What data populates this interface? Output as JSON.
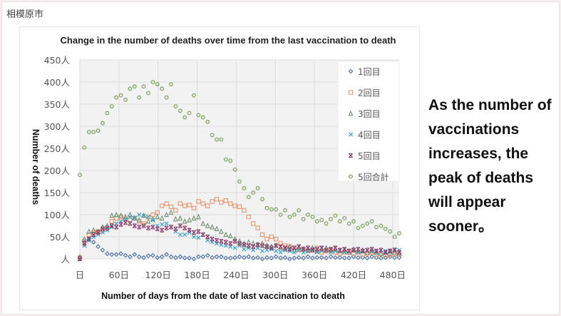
{
  "header": {
    "city": "相模原市"
  },
  "note": {
    "text": "As the number of vaccinations increases, the peak of deaths will appear sooner。"
  },
  "chart_data": {
    "type": "scatter",
    "title": "Change in the number of deaths over time from the last vaccination to death",
    "xlabel": "Number of days from the date of last vaccination to death",
    "ylabel": "Number of deaths",
    "xlim": [
      0,
      490
    ],
    "ylim": [
      0,
      450
    ],
    "x_ticks": [
      0,
      60,
      120,
      180,
      240,
      300,
      360,
      420,
      480
    ],
    "x_tick_labels": [
      "日",
      "60日",
      "120日",
      "180日",
      "240日",
      "300日",
      "360日",
      "420日",
      "480日"
    ],
    "y_ticks": [
      0,
      50,
      100,
      150,
      200,
      250,
      300,
      350,
      400,
      450
    ],
    "y_tick_labels": [
      "人",
      "50人",
      "100人",
      "150人",
      "200人",
      "250人",
      "300人",
      "350人",
      "400人",
      "450人"
    ],
    "grid": true,
    "legend_position": "top-right",
    "x_step_days": 7,
    "series": [
      {
        "name": "1回目",
        "marker": "diamond",
        "color": "#4a6fa5",
        "values": [
          2,
          38,
          45,
          38,
          28,
          20,
          12,
          10,
          10,
          12,
          8,
          5,
          10,
          5,
          3,
          7,
          8,
          3,
          5,
          10,
          5,
          3,
          5,
          2,
          2,
          0,
          5,
          5,
          8,
          3,
          5,
          5,
          2,
          2,
          3,
          5,
          3,
          5,
          2,
          3,
          0,
          3,
          2,
          5,
          2,
          3,
          0,
          2,
          3,
          2,
          5,
          2,
          3,
          3,
          2,
          5,
          3,
          3,
          2,
          2,
          5,
          3,
          3,
          2,
          5,
          3,
          2,
          3,
          5,
          3,
          3
        ]
      },
      {
        "name": "2回目",
        "marker": "square",
        "color": "#e8956b",
        "values": [
          3,
          40,
          55,
          60,
          62,
          65,
          70,
          85,
          92,
          95,
          90,
          88,
          92,
          85,
          80,
          95,
          100,
          105,
          120,
          125,
          118,
          110,
          125,
          120,
          122,
          115,
          130,
          125,
          120,
          130,
          135,
          128,
          132,
          125,
          120,
          118,
          110,
          95,
          80,
          70,
          55,
          45,
          50,
          45,
          35,
          30,
          28,
          25,
          20,
          22,
          18,
          20,
          25,
          15,
          18,
          20,
          15,
          12,
          15,
          18,
          12,
          15,
          10,
          12,
          15,
          10,
          12,
          8,
          10,
          12,
          10
        ]
      },
      {
        "name": "3回目",
        "marker": "triangle",
        "color": "#6f8f6f",
        "values": [
          5,
          45,
          62,
          65,
          62,
          72,
          75,
          98,
          100,
          98,
          95,
          100,
          92,
          88,
          98,
          85,
          90,
          95,
          92,
          100,
          105,
          90,
          92,
          85,
          88,
          92,
          95,
          80,
          75,
          72,
          68,
          62,
          55,
          52,
          45,
          40,
          35,
          38,
          35,
          32,
          35,
          30,
          28,
          30,
          25,
          22,
          28,
          20,
          25,
          22,
          20,
          25,
          18,
          22,
          25,
          20,
          22,
          18,
          20,
          15,
          22,
          18,
          20,
          15,
          18,
          15,
          12,
          15,
          18,
          15,
          12
        ]
      },
      {
        "name": "4回目",
        "marker": "x",
        "color": "#3aa1c8",
        "values": [
          0,
          30,
          42,
          50,
          55,
          60,
          65,
          72,
          80,
          85,
          90,
          95,
          92,
          100,
          98,
          95,
          88,
          75,
          78,
          80,
          72,
          62,
          55,
          55,
          60,
          50,
          48,
          55,
          42,
          38,
          35,
          32,
          30,
          28,
          25,
          30,
          22,
          25,
          20,
          25,
          18,
          20,
          22,
          18,
          15,
          20,
          18,
          15,
          20,
          15,
          18,
          22,
          15,
          18,
          20,
          15,
          18,
          20,
          15,
          18,
          20,
          15,
          18,
          20,
          18,
          15,
          20,
          18,
          15,
          22,
          20
        ]
      },
      {
        "name": "5回目",
        "marker": "x-bar",
        "color": "#8a3a6a",
        "values": [
          0,
          35,
          45,
          55,
          60,
          68,
          70,
          75,
          72,
          78,
          82,
          80,
          75,
          72,
          75,
          70,
          72,
          68,
          65,
          70,
          72,
          68,
          75,
          70,
          65,
          60,
          62,
          55,
          50,
          45,
          42,
          40,
          38,
          35,
          40,
          35,
          32,
          30,
          28,
          32,
          30,
          28,
          25,
          30,
          28,
          25,
          22,
          25,
          28,
          22,
          25,
          20,
          22,
          25,
          20,
          22,
          25,
          20,
          22,
          18,
          20,
          22,
          18,
          20,
          22,
          18,
          20,
          15,
          18,
          20,
          15
        ]
      },
      {
        "name": "5回合計",
        "marker": "circle",
        "color": "#7ba05b",
        "values": [
          190,
          252,
          287,
          287,
          290,
          307,
          330,
          345,
          365,
          370,
          360,
          385,
          390,
          365,
          390,
          375,
          400,
          395,
          385,
          365,
          395,
          345,
          335,
          320,
          330,
          370,
          325,
          320,
          310,
          280,
          270,
          270,
          225,
          222,
          202,
          175,
          160,
          140,
          150,
          160,
          135,
          115,
          112,
          112,
          100,
          110,
          95,
          100,
          110,
          90,
          100,
          95,
          85,
          88,
          80,
          90,
          98,
          85,
          92,
          80,
          85,
          70,
          75,
          80,
          85,
          72,
          75,
          68,
          62,
          50,
          58
        ]
      }
    ]
  }
}
